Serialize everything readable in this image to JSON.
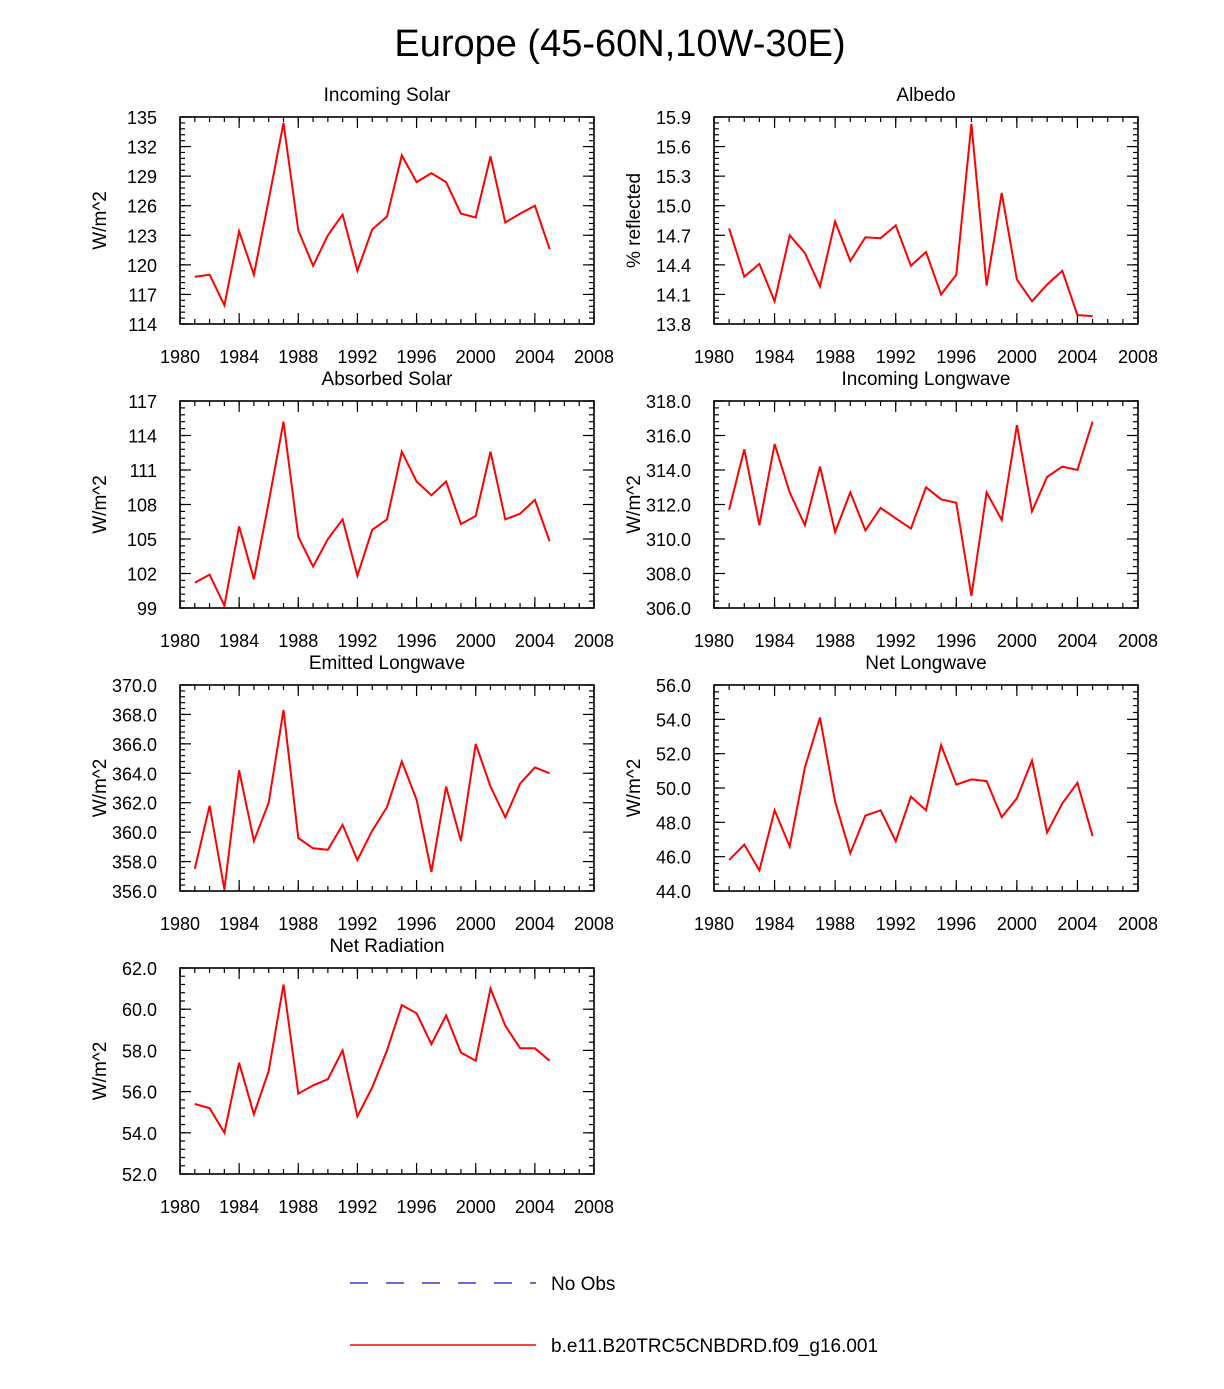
{
  "figure_title": "Europe (45-60N,10W-30E)",
  "colors": {
    "model_line": "#ff0000",
    "obs_line": "#3a3acf"
  },
  "legend": {
    "entries": [
      {
        "label": "No Obs",
        "style": "dashed",
        "color": "#3a3acf"
      },
      {
        "label": "b.e11.B20TRC5CNBDRD.f09_g16.001",
        "style": "solid",
        "color": "#ff0000"
      }
    ]
  },
  "chart_data": [
    {
      "type": "line",
      "title": "Incoming Solar",
      "ylabel": "W/m^2",
      "xlim": [
        1980,
        2008
      ],
      "ylim": [
        114,
        135
      ],
      "x_ticks": [
        1980,
        1984,
        1988,
        1992,
        1996,
        2000,
        2004,
        2008
      ],
      "x_tick_labels": [
        "1980",
        "1984",
        "1988",
        "1992",
        "1996",
        "2000",
        "2004",
        "2008"
      ],
      "y_ticks": [
        114,
        117,
        120,
        123,
        126,
        129,
        132,
        135
      ],
      "y_tick_labels": [
        "114",
        "117",
        "120",
        "123",
        "126",
        "129",
        "132",
        "135"
      ],
      "series": [
        {
          "name": "b.e11.B20TRC5CNBDRD.f09_g16.001",
          "x": [
            1981,
            1982,
            1983,
            1984,
            1985,
            1986,
            1987,
            1988,
            1989,
            1990,
            1991,
            1992,
            1993,
            1994,
            1995,
            1996,
            1997,
            1998,
            1999,
            2000,
            2001,
            2002,
            2003,
            2004,
            2005
          ],
          "y": [
            118.8,
            119.0,
            115.9,
            123.4,
            119.0,
            126.6,
            134.4,
            123.5,
            119.9,
            123.0,
            125.1,
            119.4,
            123.6,
            124.9,
            131.1,
            128.4,
            129.3,
            128.4,
            125.2,
            124.8,
            131.0,
            124.3,
            125.2,
            126.0,
            121.6
          ]
        }
      ]
    },
    {
      "type": "line",
      "title": "Albedo",
      "ylabel": "% reflected",
      "xlim": [
        1980,
        2008
      ],
      "ylim": [
        13.8,
        15.9
      ],
      "x_ticks": [
        1980,
        1984,
        1988,
        1992,
        1996,
        2000,
        2004,
        2008
      ],
      "x_tick_labels": [
        "1980",
        "1984",
        "1988",
        "1992",
        "1996",
        "2000",
        "2004",
        "2008"
      ],
      "y_ticks": [
        13.8,
        14.1,
        14.4,
        14.7,
        15.0,
        15.3,
        15.6,
        15.9
      ],
      "y_tick_labels": [
        "13.8",
        "14.1",
        "14.4",
        "14.7",
        "15.0",
        "15.3",
        "15.6",
        "15.9"
      ],
      "series": [
        {
          "name": "b.e11.B20TRC5CNBDRD.f09_g16.001",
          "x": [
            1981,
            1982,
            1983,
            1984,
            1985,
            1986,
            1987,
            1988,
            1989,
            1990,
            1991,
            1992,
            1993,
            1994,
            1995,
            1996,
            1997,
            1998,
            1999,
            2000,
            2001,
            2002,
            2003,
            2004,
            2005
          ],
          "y": [
            14.77,
            14.28,
            14.41,
            14.03,
            14.7,
            14.52,
            14.18,
            14.84,
            14.44,
            14.68,
            14.67,
            14.8,
            14.39,
            14.53,
            14.1,
            14.3,
            15.83,
            14.19,
            15.13,
            14.25,
            14.03,
            14.2,
            14.34,
            13.89,
            13.88
          ]
        }
      ]
    },
    {
      "type": "line",
      "title": "Absorbed Solar",
      "ylabel": "W/m^2",
      "xlim": [
        1980,
        2008
      ],
      "ylim": [
        99,
        117
      ],
      "x_ticks": [
        1980,
        1984,
        1988,
        1992,
        1996,
        2000,
        2004,
        2008
      ],
      "x_tick_labels": [
        "1980",
        "1984",
        "1988",
        "1992",
        "1996",
        "2000",
        "2004",
        "2008"
      ],
      "y_ticks": [
        99,
        102,
        105,
        108,
        111,
        114,
        117
      ],
      "y_tick_labels": [
        "99",
        "102",
        "105",
        "108",
        "111",
        "114",
        "117"
      ],
      "series": [
        {
          "name": "b.e11.B20TRC5CNBDRD.f09_g16.001",
          "x": [
            1981,
            1982,
            1983,
            1984,
            1985,
            1986,
            1987,
            1988,
            1989,
            1990,
            1991,
            1992,
            1993,
            1994,
            1995,
            1996,
            1997,
            1998,
            1999,
            2000,
            2001,
            2002,
            2003,
            2004,
            2005
          ],
          "y": [
            101.2,
            101.9,
            99.2,
            106.1,
            101.5,
            108.2,
            115.2,
            105.2,
            102.6,
            105.0,
            106.7,
            101.8,
            105.8,
            106.7,
            112.6,
            110.0,
            108.8,
            110.0,
            106.3,
            107.0,
            112.6,
            106.7,
            107.2,
            108.4,
            104.8
          ]
        }
      ]
    },
    {
      "type": "line",
      "title": "Incoming Longwave",
      "ylabel": "W/m^2",
      "xlim": [
        1980,
        2008
      ],
      "ylim": [
        306.0,
        318.0
      ],
      "x_ticks": [
        1980,
        1984,
        1988,
        1992,
        1996,
        2000,
        2004,
        2008
      ],
      "x_tick_labels": [
        "1980",
        "1984",
        "1988",
        "1992",
        "1996",
        "2000",
        "2004",
        "2008"
      ],
      "y_ticks": [
        306,
        308,
        310,
        312,
        314,
        316,
        318
      ],
      "y_tick_labels": [
        "306.0",
        "308.0",
        "310.0",
        "312.0",
        "314.0",
        "316.0",
        "318.0"
      ],
      "series": [
        {
          "name": "b.e11.B20TRC5CNBDRD.f09_g16.001",
          "x": [
            1981,
            1982,
            1983,
            1984,
            1985,
            1986,
            1987,
            1988,
            1989,
            1990,
            1991,
            1992,
            1993,
            1994,
            1995,
            1996,
            1997,
            1998,
            1999,
            2000,
            2001,
            2002,
            2003,
            2004,
            2005
          ],
          "y": [
            311.7,
            315.2,
            310.8,
            315.5,
            312.7,
            310.8,
            314.2,
            310.4,
            312.7,
            310.5,
            311.8,
            311.2,
            310.6,
            313.0,
            312.3,
            312.1,
            306.7,
            312.7,
            311.1,
            316.6,
            311.6,
            313.6,
            314.2,
            314.0,
            316.8
          ]
        }
      ]
    },
    {
      "type": "line",
      "title": "Emitted Longwave",
      "ylabel": "W/m^2",
      "xlim": [
        1980,
        2008
      ],
      "ylim": [
        356.0,
        370.0
      ],
      "x_ticks": [
        1980,
        1984,
        1988,
        1992,
        1996,
        2000,
        2004,
        2008
      ],
      "x_tick_labels": [
        "1980",
        "1984",
        "1988",
        "1992",
        "1996",
        "2000",
        "2004",
        "2008"
      ],
      "y_ticks": [
        356,
        358,
        360,
        362,
        364,
        366,
        368,
        370
      ],
      "y_tick_labels": [
        "356.0",
        "358.0",
        "360.0",
        "362.0",
        "364.0",
        "366.0",
        "368.0",
        "370.0"
      ],
      "series": [
        {
          "name": "b.e11.B20TRC5CNBDRD.f09_g16.001",
          "x": [
            1981,
            1982,
            1983,
            1984,
            1985,
            1986,
            1987,
            1988,
            1989,
            1990,
            1991,
            1992,
            1993,
            1994,
            1995,
            1996,
            1997,
            1998,
            1999,
            2000,
            2001,
            2002,
            2003,
            2004,
            2005
          ],
          "y": [
            357.5,
            361.8,
            356.1,
            364.2,
            359.4,
            362.0,
            368.3,
            359.6,
            358.9,
            358.8,
            360.5,
            358.1,
            360.1,
            361.7,
            364.8,
            362.2,
            357.3,
            363.1,
            359.4,
            366.0,
            363.1,
            361.0,
            363.3,
            364.4,
            364.0
          ]
        }
      ]
    },
    {
      "type": "line",
      "title": "Net Longwave",
      "ylabel": "W/m^2",
      "xlim": [
        1980,
        2008
      ],
      "ylim": [
        44.0,
        56.0
      ],
      "x_ticks": [
        1980,
        1984,
        1988,
        1992,
        1996,
        2000,
        2004,
        2008
      ],
      "x_tick_labels": [
        "1980",
        "1984",
        "1988",
        "1992",
        "1996",
        "2000",
        "2004",
        "2008"
      ],
      "y_ticks": [
        44,
        46,
        48,
        50,
        52,
        54,
        56
      ],
      "y_tick_labels": [
        "44.0",
        "46.0",
        "48.0",
        "50.0",
        "52.0",
        "54.0",
        "56.0"
      ],
      "series": [
        {
          "name": "b.e11.B20TRC5CNBDRD.f09_g16.001",
          "x": [
            1981,
            1982,
            1983,
            1984,
            1985,
            1986,
            1987,
            1988,
            1989,
            1990,
            1991,
            1992,
            1993,
            1994,
            1995,
            1996,
            1997,
            1998,
            1999,
            2000,
            2001,
            2002,
            2003,
            2004,
            2005
          ],
          "y": [
            45.8,
            46.7,
            45.2,
            48.7,
            46.6,
            51.2,
            54.1,
            49.2,
            46.2,
            48.4,
            48.7,
            46.9,
            49.5,
            48.7,
            52.5,
            50.2,
            50.5,
            50.4,
            48.3,
            49.4,
            51.6,
            47.4,
            49.1,
            50.3,
            47.2
          ]
        }
      ]
    },
    {
      "type": "line",
      "title": "Net Radiation",
      "ylabel": "W/m^2",
      "xlim": [
        1980,
        2008
      ],
      "ylim": [
        52.0,
        62.0
      ],
      "x_ticks": [
        1980,
        1984,
        1988,
        1992,
        1996,
        2000,
        2004,
        2008
      ],
      "x_tick_labels": [
        "1980",
        "1984",
        "1988",
        "1992",
        "1996",
        "2000",
        "2004",
        "2008"
      ],
      "y_ticks": [
        52,
        54,
        56,
        58,
        60,
        62
      ],
      "y_tick_labels": [
        "52.0",
        "54.0",
        "56.0",
        "58.0",
        "60.0",
        "62.0"
      ],
      "series": [
        {
          "name": "b.e11.B20TRC5CNBDRD.f09_g16.001",
          "x": [
            1981,
            1982,
            1983,
            1984,
            1985,
            1986,
            1987,
            1988,
            1989,
            1990,
            1991,
            1992,
            1993,
            1994,
            1995,
            1996,
            1997,
            1998,
            1999,
            2000,
            2001,
            2002,
            2003,
            2004,
            2005
          ],
          "y": [
            55.4,
            55.2,
            54.0,
            57.4,
            54.9,
            57.0,
            61.2,
            55.9,
            56.3,
            56.6,
            58.0,
            54.8,
            56.2,
            58.0,
            60.2,
            59.8,
            58.3,
            59.7,
            57.9,
            57.5,
            61.0,
            59.2,
            58.1,
            58.1,
            57.5
          ]
        }
      ]
    }
  ]
}
